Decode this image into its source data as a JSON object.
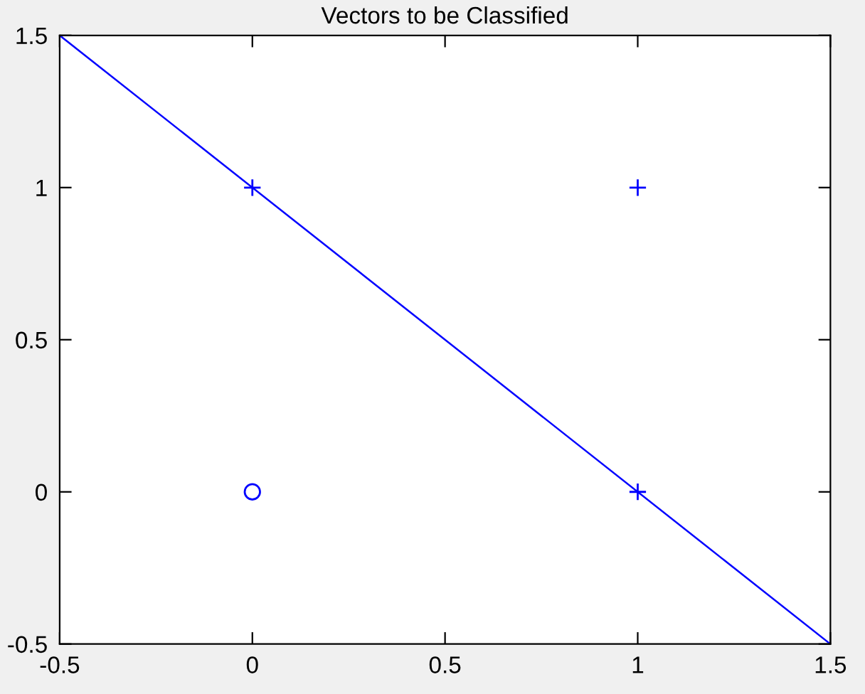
{
  "chart_data": {
    "type": "scatter",
    "title": "Vectors to be Classified",
    "series": [
      {
        "marker": "cross",
        "color": "#0000ff",
        "x": [
          0,
          1,
          1
        ],
        "values": [
          1,
          1,
          0
        ]
      },
      {
        "marker": "circle",
        "color": "#0000ff",
        "x": [
          0
        ],
        "values": [
          0
        ]
      },
      {
        "type": "line",
        "marker": "none",
        "line_style": "solid",
        "color": "#0000ff",
        "x": [
          -0.5,
          1.5
        ],
        "values": [
          1.5,
          -0.5
        ]
      }
    ],
    "xlim": [
      -0.5,
      1.5
    ],
    "ylim": [
      -0.5,
      1.5
    ],
    "xticks": [
      -0.5,
      0,
      0.5,
      1,
      1.5
    ],
    "yticks": [
      -0.5,
      0,
      0.5,
      1,
      1.5
    ],
    "grid": false,
    "legend": false
  }
}
